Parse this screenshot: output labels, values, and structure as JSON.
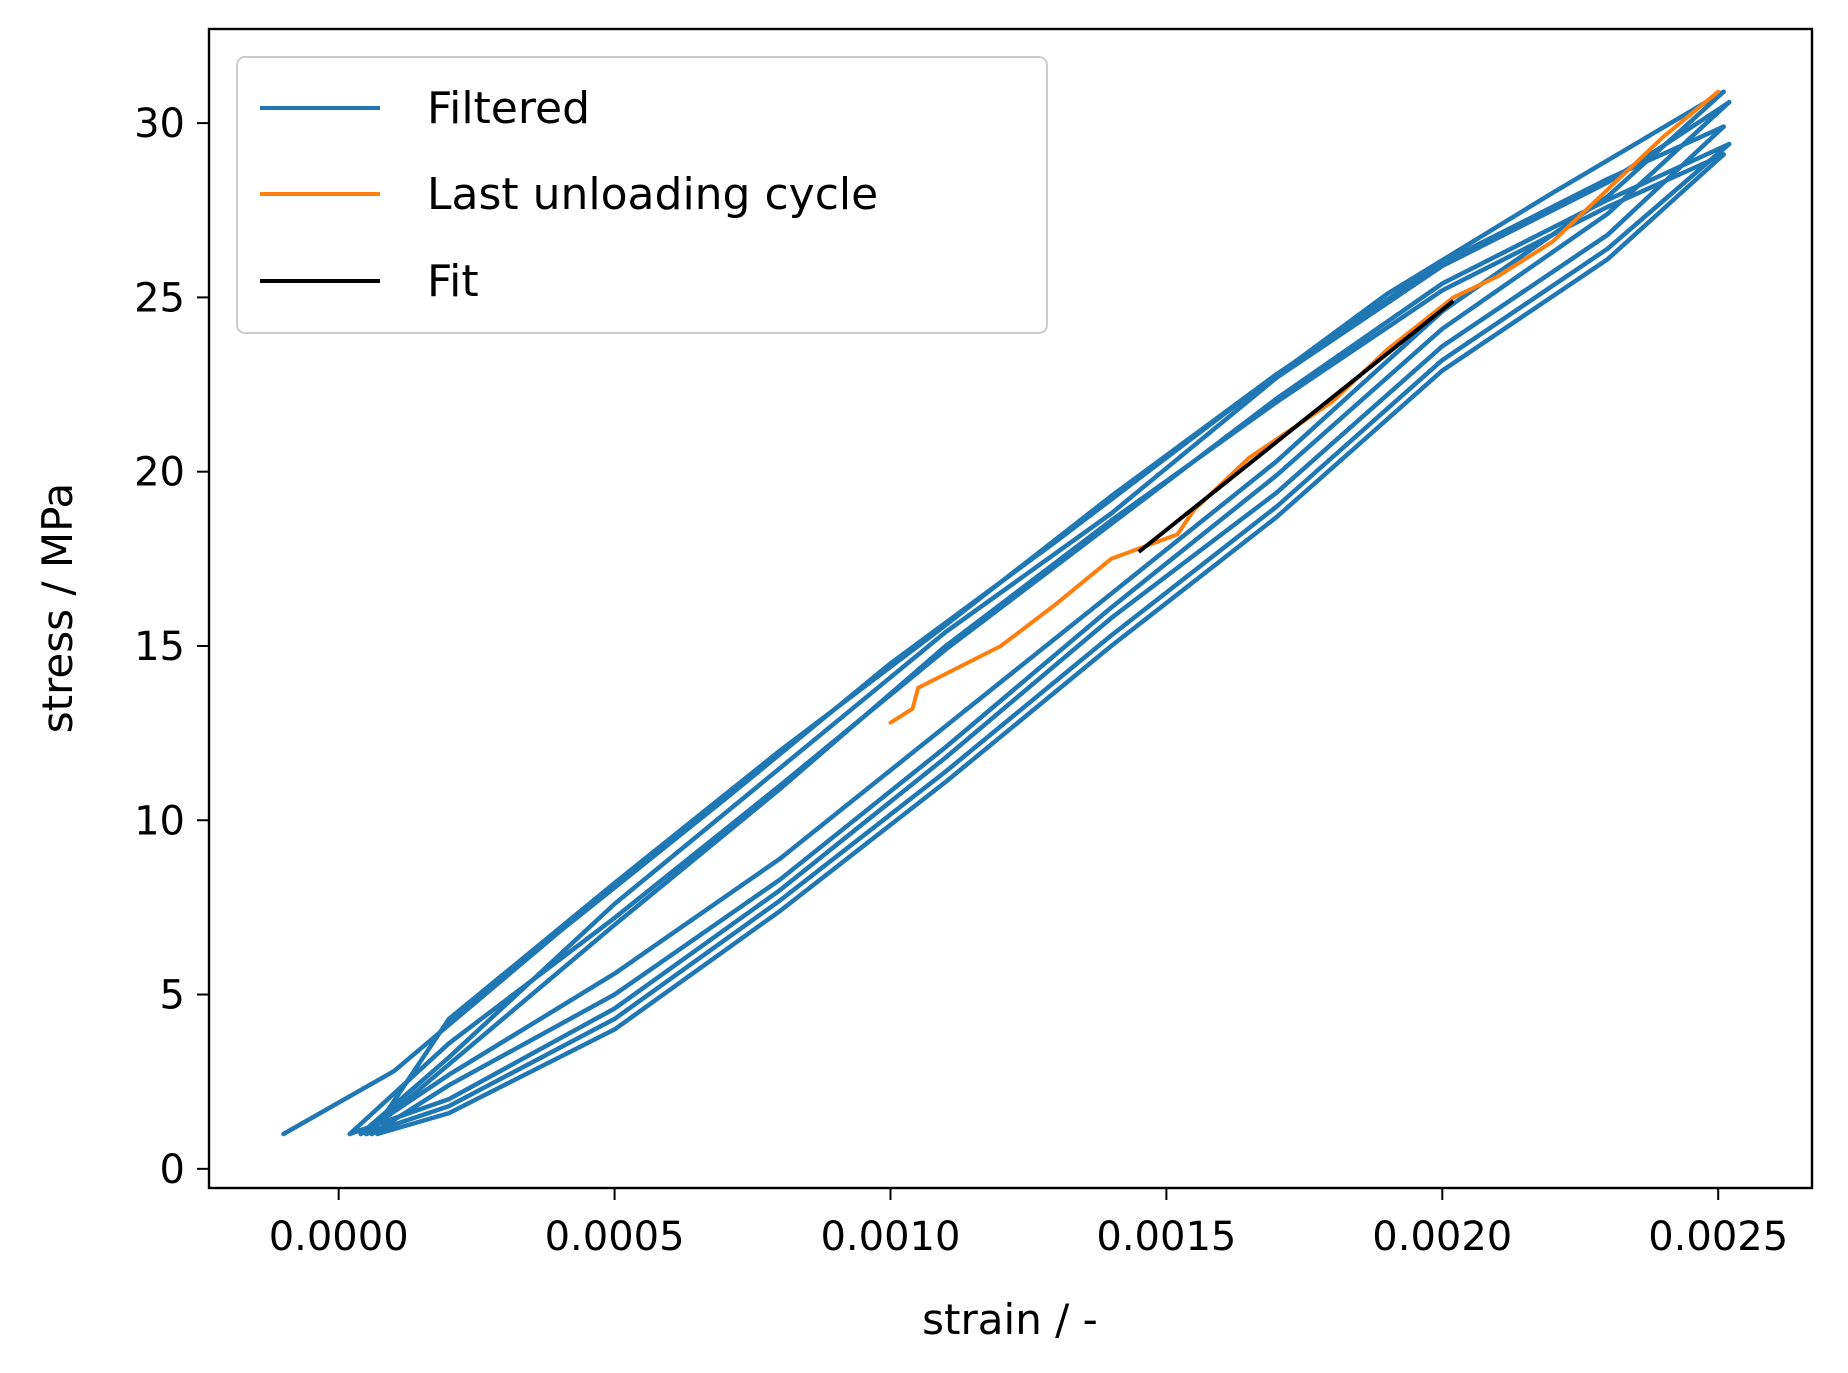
{
  "chart_data": {
    "type": "line",
    "title": "",
    "xlabel": "strain / -",
    "ylabel": "stress / MPa",
    "xlim": [
      -0.000235,
      0.00267
    ],
    "ylim": [
      -0.55,
      32.7
    ],
    "xticks": [
      0.0,
      0.0005,
      0.001,
      0.0015,
      0.002,
      0.0025
    ],
    "xtick_labels": [
      "0.0000",
      "0.0005",
      "0.0010",
      "0.0015",
      "0.0020",
      "0.0025"
    ],
    "yticks": [
      0,
      5,
      10,
      15,
      20,
      25,
      30
    ],
    "ytick_labels": [
      "0",
      "5",
      "10",
      "15",
      "20",
      "25",
      "30"
    ],
    "grid": false,
    "legend_position": "top-left",
    "series": [
      {
        "name": "Filtered",
        "color": "#1f77b4",
        "cycles": [
          {
            "x": [
              -0.0001,
              0.0001,
              0.0004,
              0.0007,
              0.001,
              0.0013,
              0.0016,
              0.0019,
              0.0022,
              0.00251
            ],
            "y": [
              1.0,
              2.8,
              6.8,
              10.6,
              14.5,
              18.0,
              21.6,
              25.1,
              28.0,
              30.9
            ]
          },
          {
            "x": [
              0.00251,
              0.0023,
              0.002,
              0.0017,
              0.0014,
              0.0011,
              0.0008,
              0.0005,
              0.0002,
              4e-05
            ],
            "y": [
              30.9,
              27.9,
              24.6,
              20.3,
              16.5,
              12.7,
              8.9,
              5.6,
              2.7,
              1.0
            ]
          },
          {
            "x": [
              4e-05,
              0.0002,
              0.0005,
              0.0008,
              0.0011,
              0.0014,
              0.0017,
              0.002,
              0.0023,
              0.00252
            ],
            "y": [
              1.0,
              3.2,
              7.6,
              11.5,
              15.4,
              18.8,
              22.7,
              25.9,
              28.3,
              30.6
            ]
          },
          {
            "x": [
              0.00252,
              0.0023,
              0.002,
              0.0017,
              0.0014,
              0.0011,
              0.0008,
              0.0005,
              0.0002,
              6e-05
            ],
            "y": [
              30.6,
              27.4,
              24.1,
              19.9,
              16.1,
              12.1,
              8.3,
              5.0,
              2.4,
              1.0
            ]
          },
          {
            "x": [
              6e-05,
              0.0002,
              0.0005,
              0.0008,
              0.0011,
              0.0014,
              0.0017,
              0.002,
              0.0023,
              0.00251
            ],
            "y": [
              1.0,
              4.3,
              8.2,
              12.0,
              15.6,
              19.3,
              22.8,
              26.0,
              28.4,
              29.9
            ]
          },
          {
            "x": [
              0.00251,
              0.0023,
              0.002,
              0.0017,
              0.0014,
              0.0011,
              0.0008,
              0.0005,
              0.0002,
              2e-05
            ],
            "y": [
              29.9,
              26.8,
              23.6,
              19.4,
              15.8,
              11.8,
              8.0,
              4.6,
              2.0,
              1.0
            ]
          },
          {
            "x": [
              2e-05,
              0.0002,
              0.0005,
              0.0008,
              0.0011,
              0.0014,
              0.0017,
              0.002,
              0.0023,
              0.00252
            ],
            "y": [
              1.0,
              3.6,
              7.2,
              11.0,
              14.9,
              18.5,
              22.1,
              25.4,
              27.8,
              29.4
            ]
          },
          {
            "x": [
              0.00252,
              0.0023,
              0.002,
              0.0017,
              0.0014,
              0.0011,
              0.0008,
              0.0005,
              0.0002,
              5e-05
            ],
            "y": [
              29.4,
              26.4,
              23.2,
              19.0,
              15.3,
              11.4,
              7.7,
              4.3,
              1.8,
              1.0
            ]
          },
          {
            "x": [
              5e-05,
              0.0002,
              0.0005,
              0.0008,
              0.0011,
              0.0014,
              0.0017,
              0.002,
              0.0023,
              0.00251
            ],
            "y": [
              1.0,
              3.0,
              7.0,
              10.9,
              15.0,
              18.6,
              22.0,
              25.2,
              27.6,
              29.1
            ]
          },
          {
            "x": [
              0.00251,
              0.0023,
              0.002,
              0.0017,
              0.0014,
              0.0011,
              0.0008,
              0.0005,
              0.0002,
              7e-05
            ],
            "y": [
              29.1,
              26.1,
              22.9,
              18.7,
              15.0,
              11.1,
              7.4,
              4.0,
              1.6,
              1.0
            ]
          }
        ]
      },
      {
        "name": "Last unloading cycle",
        "color": "#ff7f0e",
        "x": [
          0.0025,
          0.0024,
          0.0023,
          0.0022,
          0.0021,
          0.00202,
          0.0019,
          0.0018,
          0.00165,
          0.00155,
          0.00152,
          0.0014,
          0.0013,
          0.0012,
          0.0011,
          0.00105,
          0.00104,
          0.001
        ],
        "y": [
          30.9,
          29.6,
          28.1,
          26.6,
          25.6,
          25.0,
          23.5,
          22.0,
          20.4,
          18.9,
          18.2,
          17.5,
          16.2,
          15.0,
          14.2,
          13.8,
          13.2,
          12.8
        ]
      },
      {
        "name": "Fit",
        "color": "#000000",
        "x": [
          0.00145,
          0.00202
        ],
        "y": [
          17.7,
          24.9
        ]
      }
    ]
  }
}
